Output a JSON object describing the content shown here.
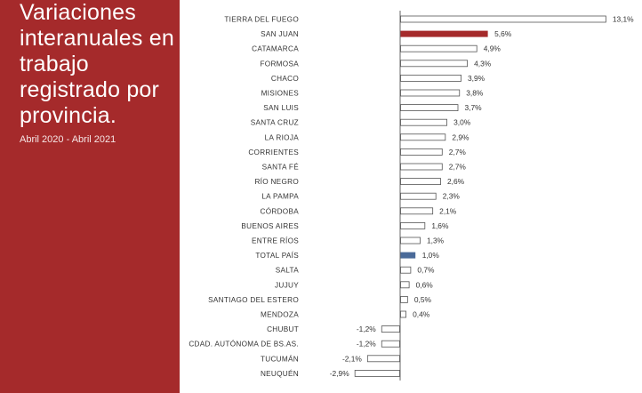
{
  "panel": {
    "title": "Variaciones interanuales en trabajo registrado por provincia.",
    "subtitle": "Abril 2020 - Abril 2021"
  },
  "colors": {
    "panel_background": "#a52a2b",
    "bar_default_fill": "#ffffff",
    "bar_border": "#555555",
    "highlight_province": "#a52a2b",
    "highlight_total": "#4a6a99"
  },
  "chart_data": {
    "type": "bar",
    "orientation": "horizontal",
    "title": "Variaciones interanuales en trabajo registrado por provincia.",
    "subtitle": "Abril 2020 - Abril 2021",
    "xlabel": "",
    "ylabel": "",
    "grid": false,
    "categories": [
      "TIERRA DEL FUEGO",
      "SAN JUAN",
      "CATAMARCA",
      "FORMOSA",
      "CHACO",
      "MISIONES",
      "SAN LUIS",
      "SANTA CRUZ",
      "LA RIOJA",
      "CORRIENTES",
      "SANTA FÉ",
      "RÍO NEGRO",
      "LA PAMPA",
      "CÓRDOBA",
      "BUENOS AIRES",
      "ENTRE RÍOS",
      "TOTAL PAÍS",
      "SALTA",
      "JUJUY",
      "SANTIAGO DEL ESTERO",
      "MENDOZA",
      "CHUBUT",
      "CDAD. AUTÓNOMA DE BS.AS.",
      "TUCUMÁN",
      "NEUQUÉN"
    ],
    "values": [
      13.1,
      5.6,
      4.9,
      4.3,
      3.9,
      3.8,
      3.7,
      3.0,
      2.9,
      2.7,
      2.7,
      2.6,
      2.3,
      2.1,
      1.6,
      1.3,
      1.0,
      0.7,
      0.6,
      0.5,
      0.4,
      -1.2,
      -1.2,
      -2.1,
      -2.9
    ],
    "value_labels": [
      "13,1%",
      "5,6%",
      "4,9%",
      "4,3%",
      "3,9%",
      "3,8%",
      "3,7%",
      "3,0%",
      "2,9%",
      "2,7%",
      "2,7%",
      "2,6%",
      "2,3%",
      "2,1%",
      "1,6%",
      "1,3%",
      "1,0%",
      "0,7%",
      "0,6%",
      "0,5%",
      "0,4%",
      "-1,2%",
      "-1,2%",
      "-2,1%",
      "-2,9%"
    ],
    "highlights": {
      "SAN JUAN": "#a52a2b",
      "TOTAL PAÍS": "#4a6a99"
    },
    "xlim": [
      -2.9,
      13.1
    ]
  }
}
